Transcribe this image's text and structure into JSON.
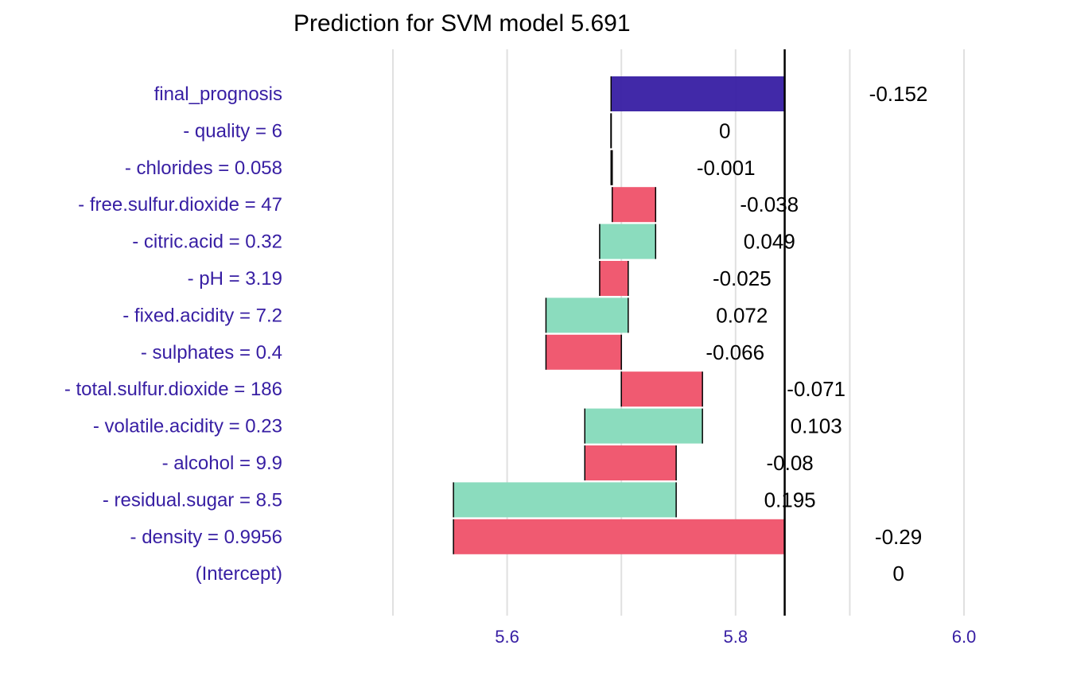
{
  "chart_data": {
    "type": "bar",
    "subtype": "waterfall",
    "title": "Prediction for SVM model 5.691",
    "xlabel": "",
    "ylabel": "",
    "xlim": [
      5.5,
      6.0
    ],
    "xticks": [
      5.6,
      5.8,
      6.0
    ],
    "xtick_labels": [
      "5.6",
      "5.8",
      "6.0"
    ],
    "minor_gridlines": [
      5.5,
      5.7,
      5.9
    ],
    "intercept": 5.843,
    "grid": true,
    "legend": "none",
    "colors": {
      "positive": "#8bdcbe",
      "negative": "#f05a71",
      "prediction": "#371ea3",
      "labels": "#371ea3",
      "baseline": "#000000",
      "grid": "#e0e0e0"
    },
    "rows": [
      {
        "label": "final_prognosis",
        "start": 5.843,
        "end": 5.691,
        "value_label": "-0.152",
        "kind": "prediction"
      },
      {
        "label": "- quality = 6",
        "start": 5.691,
        "end": 5.691,
        "value_label": "0",
        "kind": "zero"
      },
      {
        "label": "- chlorides = 0.058",
        "start": 5.692,
        "end": 5.691,
        "value_label": "-0.001",
        "kind": "negative"
      },
      {
        "label": "- free.sulfur.dioxide = 47",
        "start": 5.73,
        "end": 5.692,
        "value_label": "-0.038",
        "kind": "negative"
      },
      {
        "label": "- citric.acid = 0.32",
        "start": 5.681,
        "end": 5.73,
        "value_label": "0.049",
        "kind": "positive"
      },
      {
        "label": "- pH = 3.19",
        "start": 5.706,
        "end": 5.681,
        "value_label": "-0.025",
        "kind": "negative"
      },
      {
        "label": "- fixed.acidity = 7.2",
        "start": 5.634,
        "end": 5.706,
        "value_label": "0.072",
        "kind": "positive"
      },
      {
        "label": "- sulphates = 0.4",
        "start": 5.7,
        "end": 5.634,
        "value_label": "-0.066",
        "kind": "negative"
      },
      {
        "label": "- total.sulfur.dioxide = 186",
        "start": 5.771,
        "end": 5.7,
        "value_label": "-0.071",
        "kind": "negative"
      },
      {
        "label": "- volatile.acidity = 0.23",
        "start": 5.668,
        "end": 5.771,
        "value_label": "0.103",
        "kind": "positive"
      },
      {
        "label": "- alcohol = 9.9",
        "start": 5.748,
        "end": 5.668,
        "value_label": "-0.08",
        "kind": "negative"
      },
      {
        "label": "- residual.sugar = 8.5",
        "start": 5.553,
        "end": 5.748,
        "value_label": "0.195",
        "kind": "positive"
      },
      {
        "label": "- density = 0.9956",
        "start": 5.843,
        "end": 5.553,
        "value_label": "-0.29",
        "kind": "negative"
      },
      {
        "label": "(Intercept)",
        "start": 5.843,
        "end": 5.843,
        "value_label": "0",
        "kind": "zero"
      }
    ]
  }
}
